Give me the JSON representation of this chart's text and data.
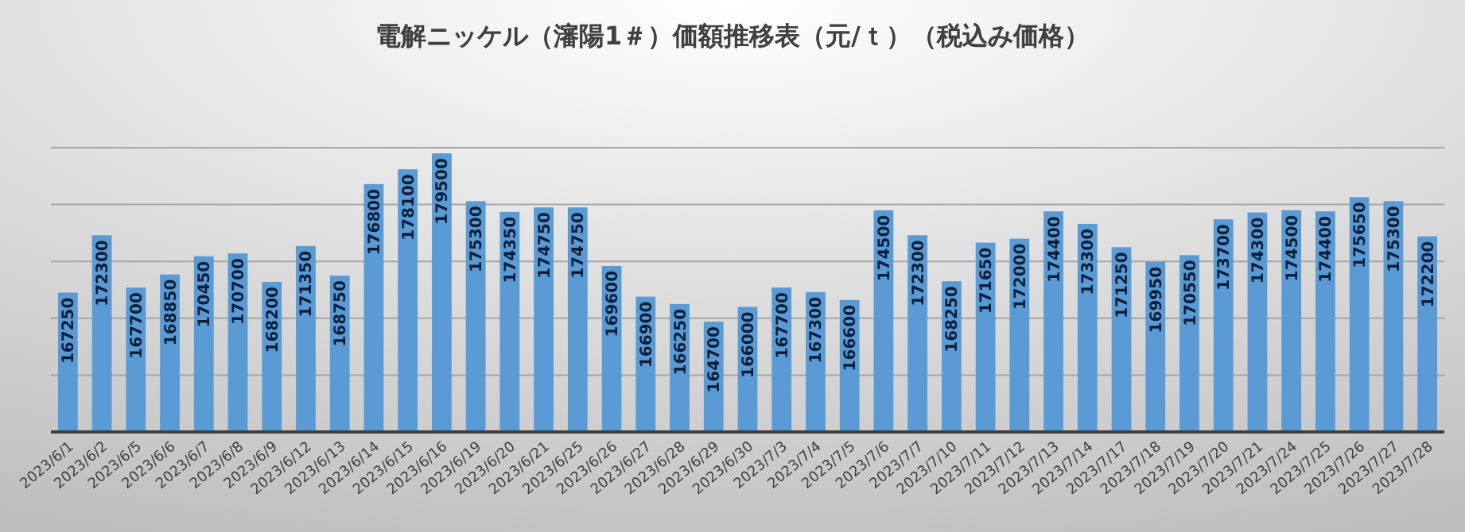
{
  "chart_data": {
    "type": "bar",
    "title": "電解ニッケル（瀋陽1＃）価額推移表（元/ｔ）（税込み価格）",
    "categories": [
      "2023/6/1",
      "2023/6/2",
      "2023/6/5",
      "2023/6/6",
      "2023/6/7",
      "2023/6/8",
      "2023/6/9",
      "2023/6/12",
      "2023/6/13",
      "2023/6/14",
      "2023/6/15",
      "2023/6/16",
      "2023/6/19",
      "2023/6/20",
      "2023/6/21",
      "2023/6/25",
      "2023/6/26",
      "2023/6/27",
      "2023/6/28",
      "2023/6/29",
      "2023/6/30",
      "2023/7/3",
      "2023/7/4",
      "2023/7/5",
      "2023/7/6",
      "2023/7/7",
      "2023/7/10",
      "2023/7/11",
      "2023/7/12",
      "2023/7/13",
      "2023/7/14",
      "2023/7/17",
      "2023/7/18",
      "2023/7/19",
      "2023/7/20",
      "2023/7/21",
      "2023/7/24",
      "2023/7/25",
      "2023/7/26",
      "2023/7/27",
      "2023/7/28"
    ],
    "values": [
      167250,
      172300,
      167700,
      168850,
      170450,
      170700,
      168200,
      171350,
      168750,
      176800,
      178100,
      179500,
      175300,
      174350,
      174750,
      174750,
      169600,
      166900,
      166250,
      164700,
      166000,
      167700,
      167300,
      166600,
      174500,
      172300,
      168250,
      171650,
      172000,
      174400,
      173300,
      171250,
      169950,
      170550,
      173700,
      174300,
      174500,
      174400,
      175650,
      175300,
      172200
    ],
    "color": "#5b9bd5",
    "ylim": [
      155000,
      180000
    ],
    "yticks": [
      {
        "value": 155000,
        "label": null
      },
      {
        "value": 160000,
        "label": null
      },
      {
        "value": 165000,
        "label": null
      },
      {
        "value": 170000,
        "label": null
      },
      {
        "value": 175000,
        "label": null
      },
      {
        "value": 180000,
        "label": null
      }
    ],
    "grid": "y",
    "tick_labels": "x",
    "data_labels": true
  }
}
